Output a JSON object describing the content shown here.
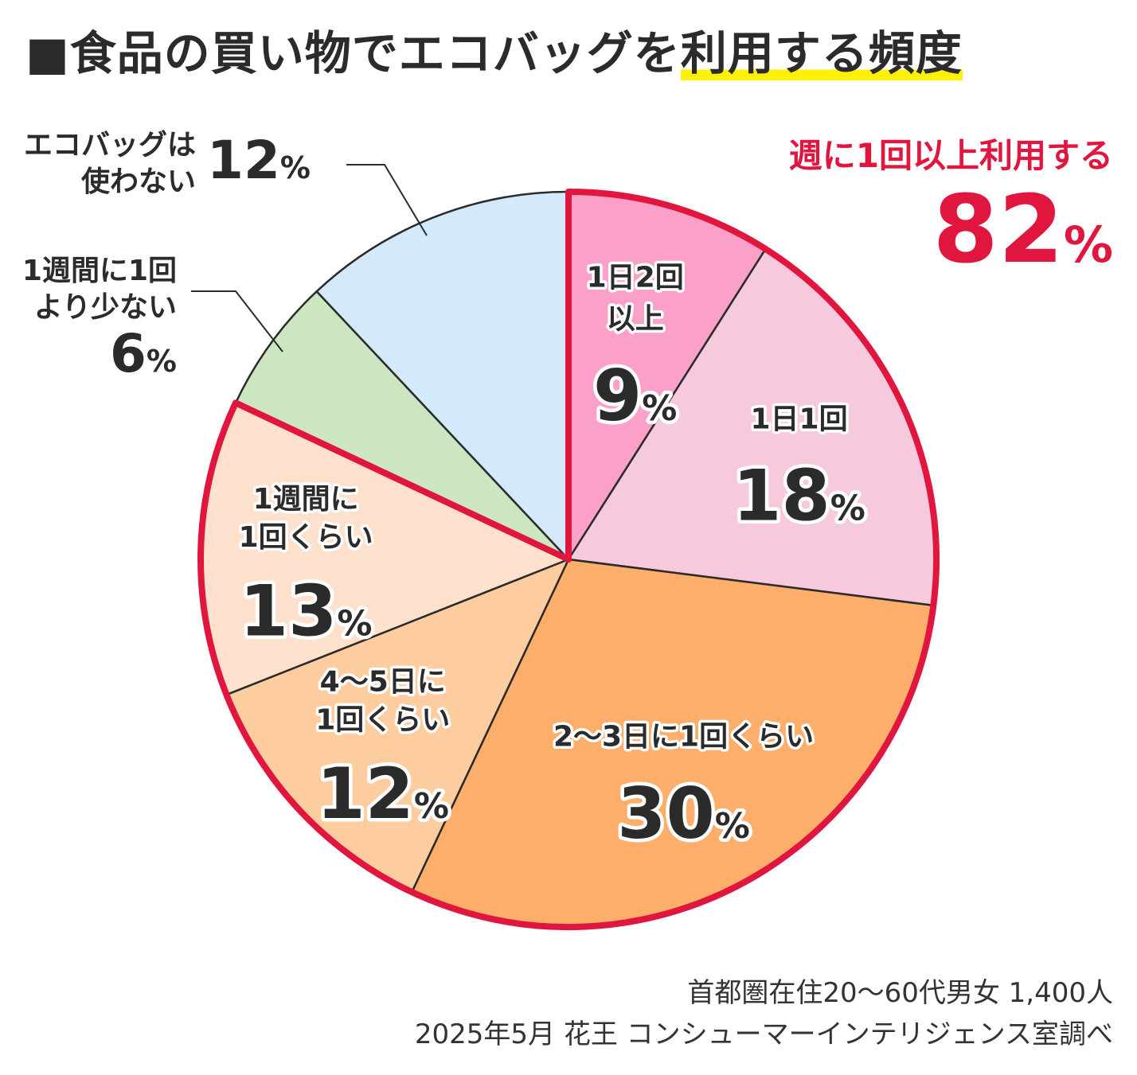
{
  "title": {
    "prefix": "■食品の買い物でエコバッグを",
    "highlight": "利用する頻度"
  },
  "highlight_callout": {
    "label": "週に1回以上利用する",
    "value": "82",
    "unit": "%"
  },
  "note": {
    "line1": "首都圏在住20〜60代男女 1,400人",
    "line2": "2025年5月 花王 コンシューマーインテリジェンス室調べ"
  },
  "colors": {
    "highlight_border": "#e0163e",
    "divider": "#2b2b2b"
  },
  "chart_data": {
    "type": "pie",
    "title": "食品の買い物でエコバッグを利用する頻度",
    "unit": "%",
    "start": "12 o'clock",
    "direction": "clockwise",
    "slices": [
      {
        "label": "1日2回以上",
        "label_lines": [
          "1日2回",
          "以上"
        ],
        "value": 9,
        "color": "#fba0c8",
        "group": "週に1回以上"
      },
      {
        "label": "1日1回",
        "label_lines": [
          "1日1回"
        ],
        "value": 18,
        "color": "#f6c9dc",
        "group": "週に1回以上"
      },
      {
        "label": "2〜3日に1回くらい",
        "label_lines": [
          "2〜3日に1回くらい"
        ],
        "value": 30,
        "color": "#fcae6a",
        "group": "週に1回以上"
      },
      {
        "label": "4〜5日に1回くらい",
        "label_lines": [
          "4〜5日に",
          "1回くらい"
        ],
        "value": 12,
        "color": "#fdcda0",
        "group": "週に1回以上"
      },
      {
        "label": "1週間に1回くらい",
        "label_lines": [
          "1週間に",
          "1回くらい"
        ],
        "value": 13,
        "color": "#fde1cc",
        "group": "週に1回以上"
      },
      {
        "label": "1週間に1回より少ない",
        "label_lines": [
          "1週間に1回",
          "より少ない"
        ],
        "value": 6,
        "color": "#cce6c2",
        "group": ""
      },
      {
        "label": "エコバッグは使わない",
        "label_lines": [
          "エコバッグは",
          "使わない"
        ],
        "value": 12,
        "color": "#d4e9fa",
        "group": ""
      }
    ]
  }
}
